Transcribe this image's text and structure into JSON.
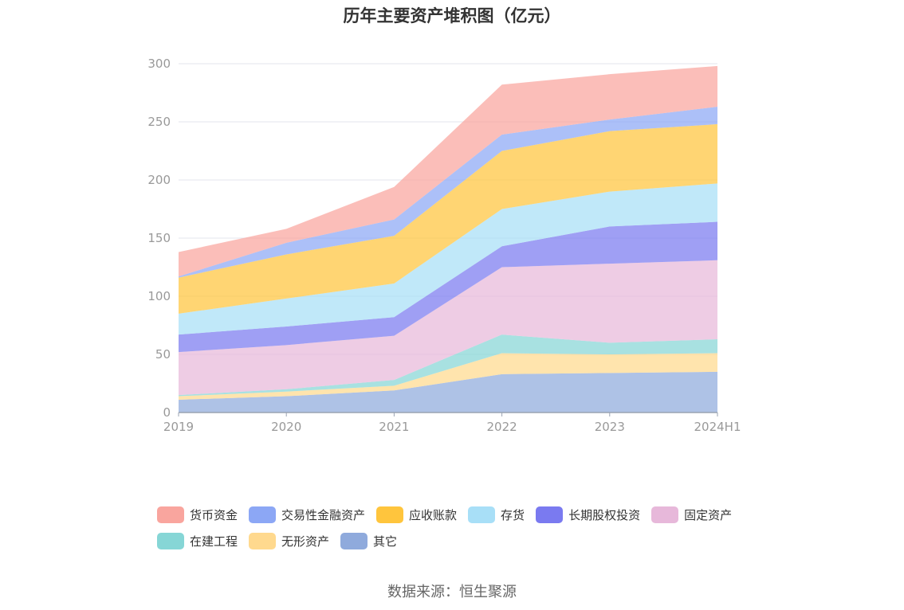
{
  "title": "历年主要资产堆积图（亿元）",
  "source": "数据来源：恒生聚源",
  "chart_data": {
    "type": "area",
    "stacked": true,
    "categories": [
      "2019",
      "2020",
      "2021",
      "2022",
      "2023",
      "2024H1"
    ],
    "ylim": [
      0,
      300
    ],
    "yticks": [
      0,
      50,
      100,
      150,
      200,
      250,
      300
    ],
    "grid": true,
    "legend_position": "bottom",
    "series": [
      {
        "name": "其它",
        "color": "#8FAADC",
        "values": [
          11,
          14,
          19,
          33,
          34,
          35
        ]
      },
      {
        "name": "无形资产",
        "color": "#FFD98E",
        "values": [
          3,
          4,
          4,
          18,
          16,
          16
        ]
      },
      {
        "name": "在建工程",
        "color": "#86D6D6",
        "values": [
          1,
          2,
          5,
          16,
          10,
          12
        ]
      },
      {
        "name": "固定资产",
        "color": "#E7B8DA",
        "values": [
          37,
          38,
          38,
          58,
          68,
          68
        ]
      },
      {
        "name": "长期股权投资",
        "color": "#7A7AF0",
        "values": [
          15,
          16,
          16,
          18,
          32,
          33
        ]
      },
      {
        "name": "存货",
        "color": "#A8DFF7",
        "values": [
          18,
          24,
          29,
          32,
          30,
          33
        ]
      },
      {
        "name": "应收账款",
        "color": "#FFC53D",
        "values": [
          31,
          38,
          41,
          50,
          52,
          51
        ]
      },
      {
        "name": "交易性金融资产",
        "color": "#8CA7F5",
        "values": [
          1,
          10,
          14,
          14,
          10,
          15
        ]
      },
      {
        "name": "货币资金",
        "color": "#F9A59E",
        "values": [
          21,
          12,
          28,
          43,
          39,
          35
        ]
      }
    ]
  },
  "legend": {
    "rows": [
      [
        {
          "label": "货币资金",
          "color": "#F9A59E"
        },
        {
          "label": "交易性金融资产",
          "color": "#8CA7F5"
        },
        {
          "label": "应收账款",
          "color": "#FFC53D"
        },
        {
          "label": "存货",
          "color": "#A8DFF7"
        },
        {
          "label": "长期股权投资",
          "color": "#7A7AF0"
        },
        {
          "label": "固定资产",
          "color": "#E7B8DA"
        }
      ],
      [
        {
          "label": "在建工程",
          "color": "#86D6D6"
        },
        {
          "label": "无形资产",
          "color": "#FFD98E"
        },
        {
          "label": "其它",
          "color": "#8FAADC"
        }
      ]
    ]
  }
}
